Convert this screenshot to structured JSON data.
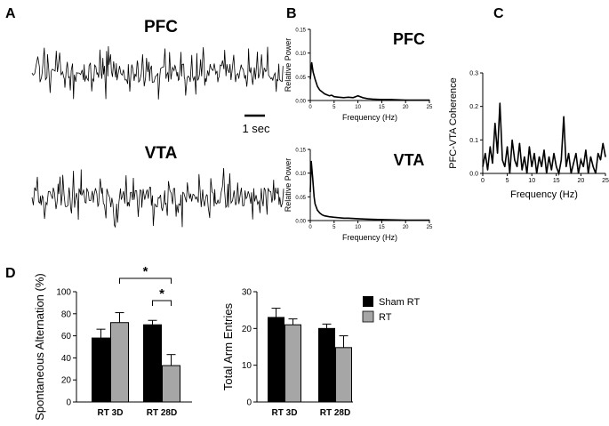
{
  "panel_labels": {
    "a": "A",
    "b": "B",
    "c": "C",
    "d": "D"
  },
  "panel_a": {
    "pfc_label": "PFC",
    "vta_label": "VTA",
    "scale_bar_label": "1 sec"
  },
  "panel_b": {
    "pfc_title": "PFC",
    "vta_title": "VTA"
  },
  "legend": {
    "sham": "Sham RT",
    "rt": "RT",
    "sham_color": "#000000",
    "rt_color": "#a6a6a6"
  },
  "significance": {
    "marker": "*"
  },
  "chart_data": [
    {
      "id": "psd_pfc",
      "type": "line",
      "title": "PFC",
      "xlabel": "Frequency (Hz)",
      "ylabel": "Relative Power",
      "xlim": [
        0,
        25
      ],
      "ylim": [
        0,
        0.15
      ],
      "xticks": [
        0,
        5,
        10,
        15,
        20,
        25
      ],
      "yticks": [
        0.0,
        0.05,
        0.1,
        0.15
      ],
      "ytick_labels": [
        "0.00",
        "0.05",
        "0.10",
        "0.15"
      ],
      "x": [
        0,
        0.3,
        0.6,
        1.0,
        1.5,
        2.0,
        2.5,
        3.0,
        3.5,
        4.0,
        4.5,
        5.0,
        6.0,
        7.0,
        8.0,
        9.0,
        10.0,
        11.0,
        12.0,
        13.0,
        15.0,
        17.0,
        20.0,
        25.0
      ],
      "y": [
        0.045,
        0.08,
        0.06,
        0.045,
        0.03,
        0.022,
        0.018,
        0.014,
        0.012,
        0.01,
        0.011,
        0.008,
        0.007,
        0.006,
        0.007,
        0.006,
        0.01,
        0.006,
        0.004,
        0.003,
        0.002,
        0.002,
        0.001,
        0.001
      ]
    },
    {
      "id": "psd_vta",
      "type": "line",
      "title": "VTA",
      "xlabel": "Frequency (Hz)",
      "ylabel": "Relative Power",
      "xlim": [
        0,
        25
      ],
      "ylim": [
        0,
        0.15
      ],
      "xticks": [
        0,
        5,
        10,
        15,
        20,
        25
      ],
      "yticks": [
        0.0,
        0.05,
        0.1,
        0.15
      ],
      "ytick_labels": [
        "0.00",
        "0.05",
        "0.10",
        "0.15"
      ],
      "x": [
        0,
        0.2,
        0.5,
        0.8,
        1.0,
        1.5,
        2.0,
        2.5,
        3.0,
        4.0,
        5.0,
        6.0,
        7.0,
        8.0,
        10.0,
        12.0,
        15.0,
        20.0,
        25.0
      ],
      "y": [
        0.06,
        0.125,
        0.09,
        0.05,
        0.035,
        0.022,
        0.016,
        0.012,
        0.01,
        0.008,
        0.007,
        0.006,
        0.005,
        0.005,
        0.004,
        0.003,
        0.002,
        0.001,
        0.001
      ]
    },
    {
      "id": "coherence",
      "type": "line",
      "title": "",
      "xlabel": "Frequency (Hz)",
      "ylabel": "PFC-VTA Coherence",
      "xlim": [
        0,
        25
      ],
      "ylim": [
        0,
        0.3
      ],
      "xticks": [
        0,
        5,
        10,
        15,
        20,
        25
      ],
      "yticks": [
        0.0,
        0.1,
        0.2,
        0.3
      ],
      "ytick_labels": [
        "0.0",
        "0.1",
        "0.2",
        "0.3"
      ],
      "x": [
        0,
        0.5,
        1.0,
        1.5,
        2.0,
        2.5,
        3.0,
        3.5,
        4.0,
        4.5,
        5.0,
        5.5,
        6.0,
        6.5,
        7.0,
        7.5,
        8.0,
        8.5,
        9.0,
        9.5,
        10.0,
        10.5,
        11.0,
        11.5,
        12.0,
        12.5,
        13.0,
        13.5,
        14.0,
        14.5,
        15.0,
        15.5,
        16.0,
        16.5,
        17.0,
        17.5,
        18.0,
        18.5,
        19.0,
        19.5,
        20.0,
        20.5,
        21.0,
        21.5,
        22.0,
        22.5,
        23.0,
        23.5,
        24.0,
        24.5,
        25.0
      ],
      "y": [
        0.02,
        0.06,
        0.01,
        0.08,
        0.03,
        0.15,
        0.06,
        0.21,
        0.04,
        0.02,
        0.08,
        0.0,
        0.1,
        0.04,
        0.02,
        0.09,
        0.01,
        0.05,
        0.0,
        0.08,
        0.02,
        0.06,
        0.0,
        0.05,
        0.02,
        0.07,
        0.0,
        0.05,
        0.01,
        0.06,
        0.02,
        0.0,
        0.04,
        0.17,
        0.02,
        0.06,
        0.0,
        0.03,
        0.06,
        0.0,
        0.04,
        0.02,
        0.07,
        0.0,
        0.05,
        0.02,
        0.0,
        0.06,
        0.04,
        0.09,
        0.05
      ]
    },
    {
      "id": "spontaneous_alternation",
      "type": "bar",
      "categories": [
        "RT 3D",
        "RT 28D"
      ],
      "series": [
        {
          "name": "Sham RT",
          "values": [
            58,
            70
          ],
          "errors": [
            8,
            4
          ]
        },
        {
          "name": "RT",
          "values": [
            72,
            33
          ],
          "errors": [
            9,
            10
          ]
        }
      ],
      "ylabel": "Spontaneous Alternation (%)",
      "ylim": [
        0,
        100
      ],
      "yticks": [
        0,
        20,
        40,
        60,
        80,
        100
      ],
      "ytick_labels": [
        "0",
        "20",
        "40",
        "60",
        "80",
        "100"
      ],
      "annotations": [
        {
          "text": "*",
          "from": "RT 3D / RT",
          "to": "RT 28D / RT"
        },
        {
          "text": "*",
          "from": "RT 28D / Sham RT",
          "to": "RT 28D / RT"
        }
      ]
    },
    {
      "id": "total_arm_entries",
      "type": "bar",
      "categories": [
        "RT 3D",
        "RT 28D"
      ],
      "series": [
        {
          "name": "Sham RT",
          "values": [
            23,
            20
          ],
          "errors": [
            2.5,
            1.2
          ]
        },
        {
          "name": "RT",
          "values": [
            21,
            14.8
          ],
          "errors": [
            1.6,
            3.2
          ]
        }
      ],
      "ylabel": "Total Arm Entries",
      "ylim": [
        0,
        30
      ],
      "yticks": [
        0,
        10,
        20,
        30
      ],
      "ytick_labels": [
        "0",
        "10",
        "20",
        "30"
      ]
    }
  ]
}
